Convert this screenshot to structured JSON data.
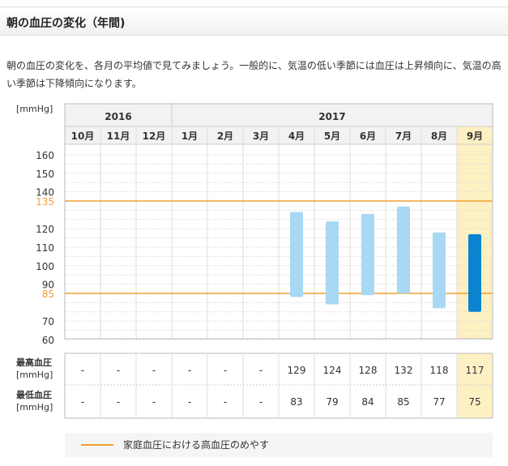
{
  "header": {
    "title": "朝の血圧の変化（年間)"
  },
  "intro": "朝の血圧の変化を、各月の平均値で見てみましょう。一般的に、気温の低い季節には血圧は上昇傾向に、気温の高い季節は下降傾向になります。",
  "unit_label": "[mmHg]",
  "row_labels": {
    "max_line1": "最高血圧",
    "max_line2": "[mmHg]",
    "min_line1": "最低血圧",
    "min_line2": "[mmHg]"
  },
  "legend": {
    "label": "家庭血圧における高血圧のめやす"
  },
  "colors": {
    "bar": "#a8d8f4",
    "bar_highlight": "#0b84cf",
    "threshold": "#f0a030",
    "highlight_bg": "#fdf0c2"
  },
  "chart_data": {
    "type": "bar",
    "years": [
      {
        "label": "2016",
        "span": 3
      },
      {
        "label": "2017",
        "span": 9
      }
    ],
    "categories": [
      "10月",
      "11月",
      "12月",
      "1月",
      "2月",
      "3月",
      "4月",
      "5月",
      "6月",
      "7月",
      "8月",
      "9月"
    ],
    "highlight_index": 11,
    "yticks": [
      60,
      70,
      90,
      100,
      110,
      120,
      140,
      150,
      160
    ],
    "ylim": [
      60,
      160
    ],
    "thresholds": [
      135,
      85
    ],
    "series": [
      {
        "name": "最高血圧",
        "values": [
          "-",
          "-",
          "-",
          "-",
          "-",
          "-",
          129,
          124,
          128,
          132,
          118,
          117
        ]
      },
      {
        "name": "最低血圧",
        "values": [
          "-",
          "-",
          "-",
          "-",
          "-",
          "-",
          83,
          79,
          84,
          85,
          77,
          75
        ]
      }
    ]
  }
}
